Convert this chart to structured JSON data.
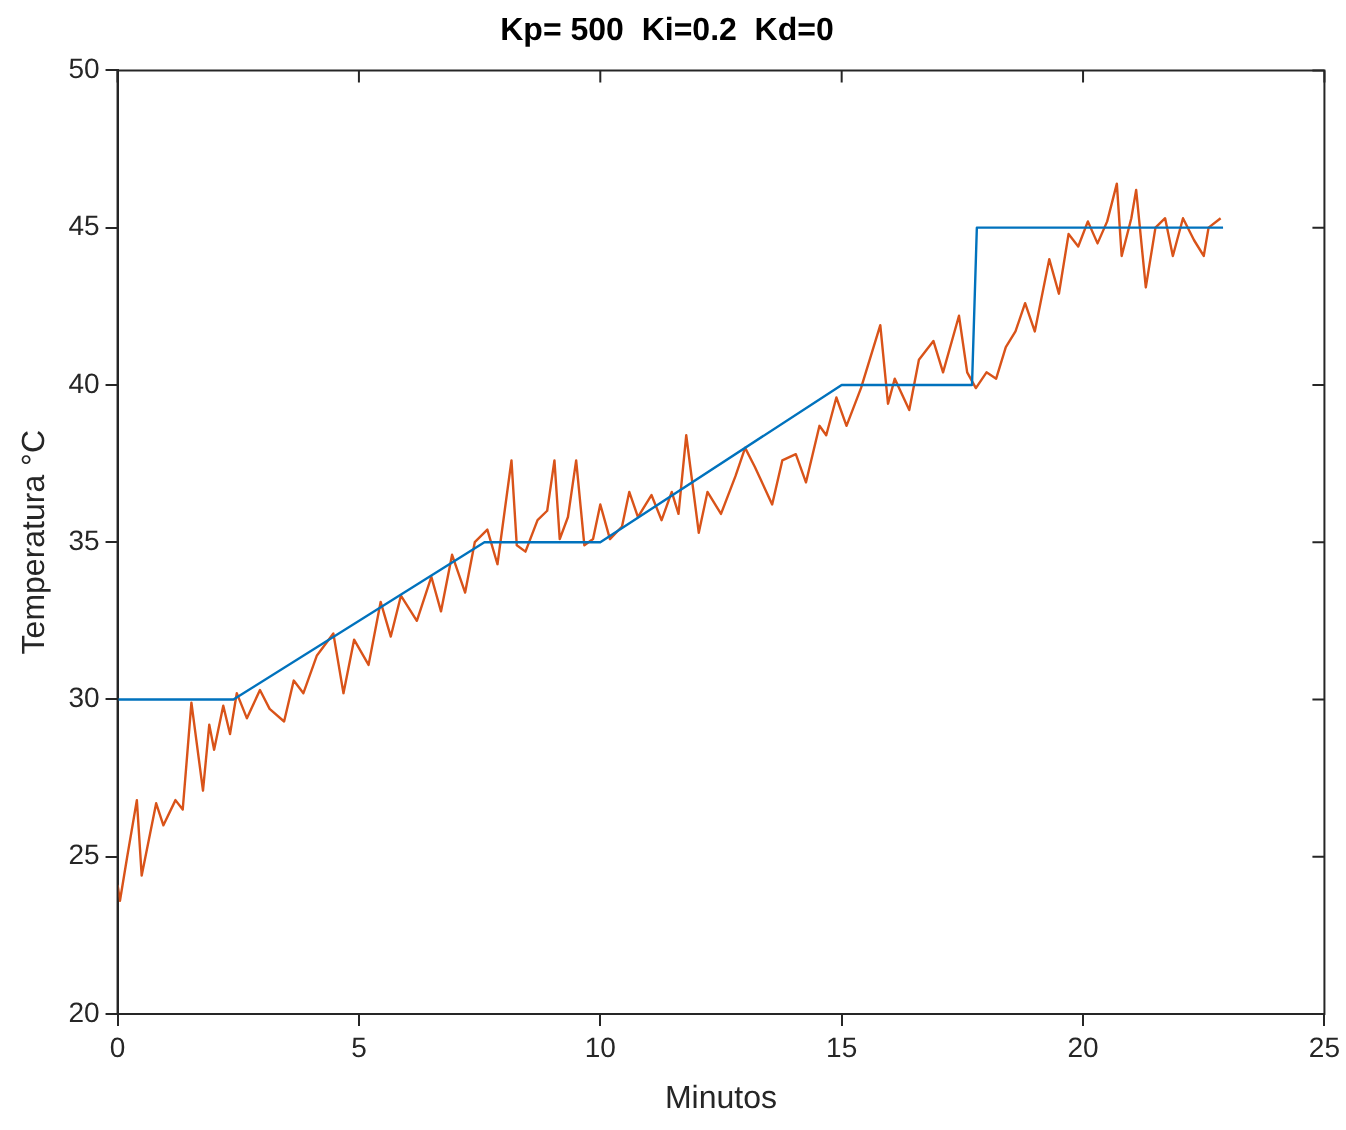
{
  "chart_data": {
    "type": "line",
    "title": "Kp= 500  Ki=0.2  Kd=0",
    "xlabel": "Minutos",
    "ylabel": "Temperatura °C",
    "xlim": [
      0,
      25
    ],
    "xticks": [
      0,
      5,
      10,
      15,
      20,
      25
    ],
    "ylim": [
      20,
      50
    ],
    "yticks": [
      20,
      25,
      30,
      35,
      40,
      45,
      50
    ],
    "grid": false,
    "legend": false,
    "marker": "none",
    "line_style": "solid",
    "series": [
      {
        "color": "#0072bd",
        "x": [
          0,
          2.4,
          7.6,
          10.0,
          15.0,
          17.7,
          17.8,
          22.9
        ],
        "values": [
          30,
          30,
          35,
          35,
          40,
          40,
          45,
          45
        ]
      },
      {
        "color": "#d95319",
        "x": [
          0,
          0.05,
          0.2,
          0.4,
          0.5,
          0.8,
          0.95,
          1.2,
          1.35,
          1.43,
          1.53,
          1.77,
          1.9,
          2.0,
          2.19,
          2.33,
          2.47,
          2.68,
          2.95,
          3.15,
          3.45,
          3.65,
          3.85,
          4.13,
          4.47,
          4.68,
          4.9,
          5.2,
          5.45,
          5.66,
          5.87,
          6.2,
          6.5,
          6.7,
          6.93,
          7.2,
          7.4,
          7.66,
          7.87,
          8.16,
          8.27,
          8.45,
          8.7,
          8.9,
          9.05,
          9.16,
          9.33,
          9.5,
          9.67,
          9.85,
          10.0,
          10.2,
          10.45,
          10.6,
          10.78,
          11.06,
          11.27,
          11.48,
          11.62,
          11.78,
          12.04,
          12.22,
          12.5,
          12.8,
          13.0,
          13.2,
          13.56,
          13.77,
          14.05,
          14.26,
          14.54,
          14.68,
          14.89,
          15.1,
          15.4,
          15.8,
          15.96,
          16.1,
          16.4,
          16.6,
          16.9,
          17.1,
          17.43,
          17.6,
          17.78,
          18.0,
          18.2,
          18.4,
          18.6,
          18.8,
          19.0,
          19.3,
          19.5,
          19.7,
          19.9,
          20.1,
          20.3,
          20.5,
          20.7,
          20.8,
          21.0,
          21.1,
          21.3,
          21.5,
          21.7,
          21.86,
          22.07,
          22.3,
          22.5,
          22.6,
          22.85
        ],
        "values": [
          24.1,
          23.6,
          25.0,
          26.8,
          24.4,
          26.7,
          26.0,
          26.8,
          26.5,
          28.0,
          29.9,
          27.1,
          29.2,
          28.4,
          29.8,
          28.9,
          30.2,
          29.4,
          30.3,
          29.7,
          29.3,
          30.6,
          30.2,
          31.4,
          32.1,
          30.2,
          31.9,
          31.1,
          33.1,
          32.0,
          33.3,
          32.5,
          33.9,
          32.8,
          34.6,
          33.4,
          35.0,
          35.4,
          34.3,
          37.6,
          34.9,
          34.7,
          35.7,
          36.0,
          37.6,
          35.1,
          35.8,
          37.6,
          34.9,
          35.1,
          36.2,
          35.1,
          35.5,
          36.6,
          35.8,
          36.5,
          35.7,
          36.6,
          35.9,
          38.4,
          35.3,
          36.6,
          35.9,
          37.1,
          38.0,
          37.4,
          36.2,
          37.6,
          37.8,
          36.9,
          38.7,
          38.4,
          39.6,
          38.7,
          39.9,
          41.9,
          39.4,
          40.2,
          39.2,
          40.8,
          41.4,
          40.4,
          42.2,
          40.4,
          39.9,
          40.4,
          40.2,
          41.2,
          41.7,
          42.6,
          41.7,
          44.0,
          42.9,
          44.8,
          44.4,
          45.2,
          44.5,
          45.2,
          46.4,
          44.1,
          45.3,
          46.2,
          43.1,
          45.0,
          45.3,
          44.1,
          45.3,
          44.6,
          44.1,
          45.0,
          45.3
        ]
      }
    ]
  }
}
